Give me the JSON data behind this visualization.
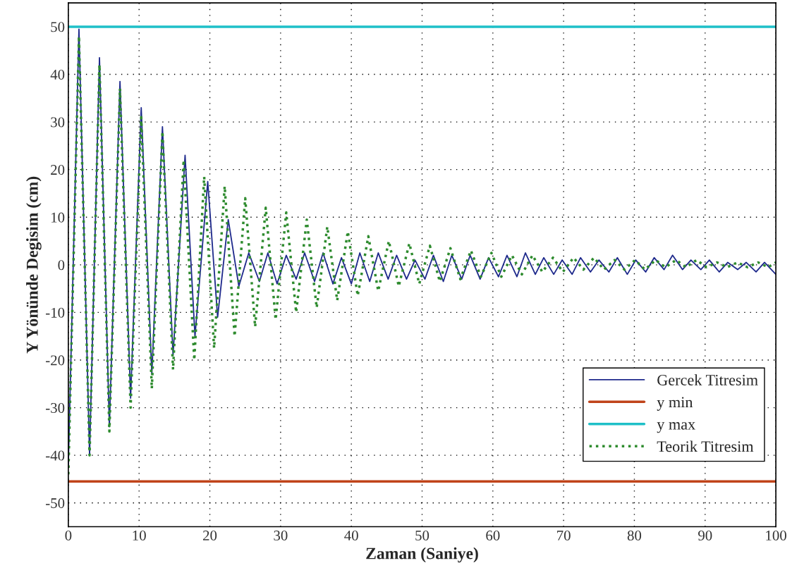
{
  "chart_data": {
    "type": "line",
    "xlabel": "Zaman (Saniye)",
    "ylabel": "Y Yönünde Degisim (cm)",
    "xlim": [
      0,
      100
    ],
    "xticks": [
      0,
      10,
      20,
      30,
      40,
      50,
      60,
      70,
      80,
      90,
      100
    ],
    "ylim": [
      -55,
      55
    ],
    "yticks": [
      -50,
      -40,
      -30,
      -20,
      -10,
      0,
      10,
      20,
      30,
      40,
      50
    ],
    "grid": true,
    "legend": "bottom right",
    "series": [
      {
        "name": "Gercek Titresim",
        "color": "#1f2a8c",
        "line_style": "solid",
        "x": [
          0,
          1.5,
          3,
          4.4,
          5.8,
          7.3,
          8.8,
          10.3,
          11.8,
          13.3,
          14.8,
          16.5,
          17.9,
          19.7,
          21.1,
          22.6,
          24.1,
          25.5,
          27,
          28.2,
          29.5,
          30.8,
          32.2,
          33.4,
          34.8,
          36,
          37.4,
          38.6,
          40,
          41.2,
          42.6,
          43.8,
          45.2,
          46.4,
          47.8,
          49,
          50.4,
          51.6,
          53,
          54.2,
          55.6,
          56.8,
          58.2,
          59.4,
          60.8,
          62,
          63.4,
          64.6,
          66,
          67.2,
          68.6,
          69.8,
          71.2,
          72.4,
          73.8,
          75,
          76.4,
          77.6,
          79,
          80.2,
          81.6,
          82.8,
          84.2,
          85.4,
          86.8,
          88,
          89.4,
          90.6,
          92,
          93.2,
          94.6,
          95.8,
          97.2,
          98.4,
          100
        ],
        "values": [
          -42,
          49.5,
          -40,
          43.5,
          -34,
          38.5,
          -28,
          33,
          -23,
          29,
          -19,
          23,
          -15,
          17.5,
          -11,
          9.5,
          -4.5,
          2.5,
          -3.5,
          2.5,
          -4,
          2,
          -3,
          2.5,
          -3.5,
          2.5,
          -4,
          1.5,
          -4,
          2.5,
          -3.5,
          2.5,
          -3,
          2,
          -3,
          1,
          -3,
          2,
          -3.5,
          2,
          -3,
          2,
          -3,
          1.5,
          -2.5,
          2,
          -2.5,
          2.5,
          -2,
          1.5,
          -2,
          1,
          -2,
          1.5,
          -1.5,
          1,
          -1.5,
          1.5,
          -2,
          1,
          -1.5,
          1.5,
          -1,
          2,
          -1,
          1,
          -1,
          1,
          -1.5,
          0.5,
          -1,
          0.5,
          -1.5,
          0.5,
          -2
        ]
      },
      {
        "name": "y min",
        "color": "#c0441a",
        "line_style": "solid",
        "x": [
          0,
          100
        ],
        "values": [
          -45.5,
          -45.5
        ]
      },
      {
        "name": "y max",
        "color": "#1fc0c8",
        "line_style": "solid",
        "x": [
          0,
          100
        ],
        "values": [
          50,
          50
        ]
      },
      {
        "name": "Teorik Titresim",
        "color": "#2e8b2e",
        "line_style": "dotted",
        "x": [
          0,
          1.5,
          3,
          4.4,
          5.8,
          7.3,
          8.8,
          10.3,
          11.8,
          13.3,
          14.8,
          16.3,
          17.8,
          19.2,
          20.6,
          22.1,
          23.5,
          25,
          26.4,
          27.9,
          29.3,
          30.8,
          32.2,
          33.7,
          35.1,
          36.6,
          38,
          39.5,
          40.9,
          42.4,
          43.8,
          45.3,
          46.7,
          48.2,
          49.6,
          51.1,
          52.5,
          54,
          55.4,
          56.9,
          58.3,
          59.8,
          61.2,
          62.7,
          64.1,
          65.6,
          67,
          68.5,
          69.9,
          71.4,
          72.8,
          74.3,
          75.7,
          77.2,
          78.6,
          80.1,
          81.5,
          83,
          84.4,
          85.9,
          87.3,
          88.8,
          90.2,
          91.7,
          93.1,
          94.6,
          96,
          97.5,
          98.9,
          100
        ],
        "values": [
          -44,
          48,
          -40,
          42,
          -35,
          37,
          -30,
          31,
          -26,
          28,
          -22,
          22,
          -20,
          18.5,
          -17.5,
          16.5,
          -15,
          14,
          -13,
          12,
          -11.5,
          11,
          -10,
          9.5,
          -9,
          8,
          -7.5,
          7,
          -6.5,
          6,
          -5.5,
          5,
          -4.5,
          4.5,
          -4,
          4,
          -3.5,
          3.5,
          -3,
          3,
          -2.5,
          2.5,
          -2.5,
          2,
          -2,
          2,
          -1.5,
          1.5,
          -1.5,
          1.5,
          -1,
          1.5,
          -1,
          1,
          -1,
          1,
          -1,
          1,
          -0.5,
          1,
          -0.5,
          1,
          -0.5,
          0.5,
          -0.5,
          0.5,
          -0.5,
          0.5,
          -0.5,
          0.5
        ]
      }
    ]
  }
}
